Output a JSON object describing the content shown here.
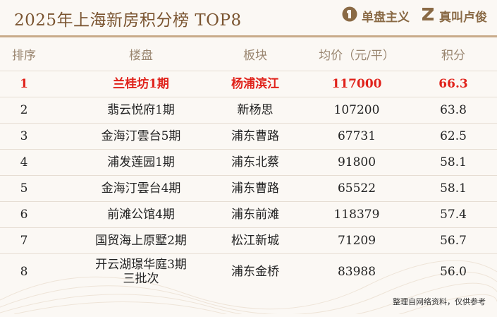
{
  "title": "2025年上海新房积分榜 TOP8",
  "brands": [
    {
      "icon": "one-icon",
      "name": "单盘主义"
    },
    {
      "icon": "z-logo-icon",
      "name": "真叫卢俊"
    }
  ],
  "table": {
    "headers": {
      "rank": "排序",
      "name": "楼盘",
      "area": "板块",
      "price": "均价（元/平）",
      "score": "积分"
    },
    "rows": [
      {
        "rank": "1",
        "name": "兰桂坊1期",
        "area": "杨浦滨江",
        "price": "117000",
        "score": "66.3"
      },
      {
        "rank": "2",
        "name": "翡云悦府1期",
        "area": "新杨思",
        "price": "107200",
        "score": "63.8"
      },
      {
        "rank": "3",
        "name": "金海汀雲台5期",
        "area": "浦东曹路",
        "price": "67731",
        "score": "62.5"
      },
      {
        "rank": "4",
        "name": "浦发莲园1期",
        "area": "浦东北蔡",
        "price": "91800",
        "score": "58.1"
      },
      {
        "rank": "5",
        "name": "金海汀雲台4期",
        "area": "浦东曹路",
        "price": "65522",
        "score": "58.1"
      },
      {
        "rank": "6",
        "name": "前滩公馆4期",
        "area": "浦东前滩",
        "price": "118379",
        "score": "57.4"
      },
      {
        "rank": "7",
        "name": "国贸海上原墅2期",
        "area": "松江新城",
        "price": "71209",
        "score": "56.7"
      },
      {
        "rank": "8",
        "name": "开云湖璟华庭3期",
        "name2": "三批次",
        "area": "浦东金桥",
        "price": "83988",
        "score": "56.0"
      }
    ]
  },
  "footnote": "整理自网络资料，仅供参考",
  "colors": {
    "title": "#7a5430",
    "highlight": "#e0221b",
    "header_text": "#9a8670",
    "rule": "#c9ab8a",
    "background": "#fbf8f4"
  }
}
